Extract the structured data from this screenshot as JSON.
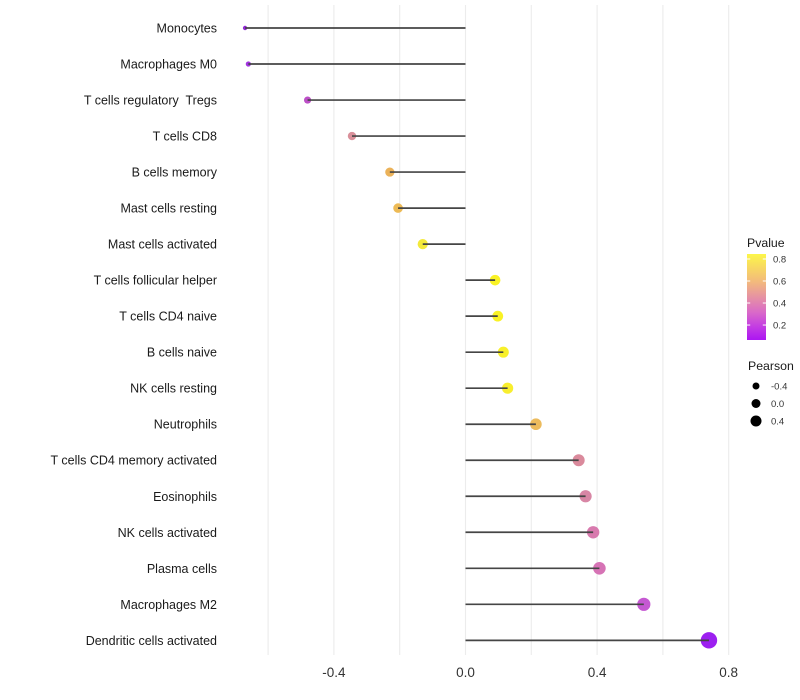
{
  "chart_data": {
    "type": "scatter",
    "variant": "lollipop",
    "orientation": "horizontal",
    "title": "",
    "xlabel": "",
    "ylabel": "",
    "xlim": [
      -0.74,
      1.0
    ],
    "grid": true,
    "gridline_values": [
      -0.6,
      -0.4,
      -0.2,
      0.0,
      0.2,
      0.4,
      0.6,
      0.8
    ],
    "x_ticks": [
      {
        "value": -0.4,
        "label": "-0.4"
      },
      {
        "value": 0.0,
        "label": "0.0"
      },
      {
        "value": 0.4,
        "label": "0.4"
      },
      {
        "value": 0.8,
        "label": "0.8"
      }
    ],
    "points": [
      {
        "category": "Monocytes",
        "pearson": -0.67,
        "pvalue_color": "#9229D5",
        "radius": 2.2
      },
      {
        "category": "Macrophages M0",
        "pearson": -0.66,
        "pvalue_color": "#A134E0",
        "radius": 2.6
      },
      {
        "category": "T cells regulatory  Tregs",
        "pearson": -0.48,
        "pvalue_color": "#BC4FC7",
        "radius": 3.6
      },
      {
        "category": "T cells CD8",
        "pearson": -0.345,
        "pvalue_color": "#D9909A",
        "radius": 4.2
      },
      {
        "category": "B cells memory",
        "pearson": -0.23,
        "pvalue_color": "#EBB259",
        "radius": 4.6
      },
      {
        "category": "Mast cells resting",
        "pearson": -0.205,
        "pvalue_color": "#EDBA55",
        "radius": 4.8
      },
      {
        "category": "Mast cells activated",
        "pearson": -0.13,
        "pvalue_color": "#F3E93B",
        "radius": 5.1
      },
      {
        "category": "T cells follicular helper",
        "pearson": 0.09,
        "pvalue_color": "#F9F225",
        "radius": 5.3
      },
      {
        "category": "T cells CD4 naive",
        "pearson": 0.098,
        "pvalue_color": "#F9F225",
        "radius": 5.4
      },
      {
        "category": "B cells naive",
        "pearson": 0.115,
        "pvalue_color": "#F8F02A",
        "radius": 5.5
      },
      {
        "category": "NK cells resting",
        "pearson": 0.128,
        "pvalue_color": "#F8EE2E",
        "radius": 5.6
      },
      {
        "category": "Neutrophils",
        "pearson": 0.214,
        "pvalue_color": "#ECBB5D",
        "radius": 5.8
      },
      {
        "category": "T cells CD4 memory activated",
        "pearson": 0.344,
        "pvalue_color": "#DA8A9C",
        "radius": 6.0
      },
      {
        "category": "Eosinophils",
        "pearson": 0.365,
        "pvalue_color": "#D886A5",
        "radius": 6.1
      },
      {
        "category": "NK cells activated",
        "pearson": 0.388,
        "pvalue_color": "#D87AAE",
        "radius": 6.2
      },
      {
        "category": "Plasma cells",
        "pearson": 0.407,
        "pvalue_color": "#D673B5",
        "radius": 6.3
      },
      {
        "category": "Macrophages M2",
        "pearson": 0.542,
        "pvalue_color": "#C558D2",
        "radius": 6.6
      },
      {
        "category": "Dendritic cells activated",
        "pearson": 0.74,
        "pvalue_color": "#9C1FF0",
        "radius": 8.2
      }
    ],
    "legend_pvalue": {
      "title": "Pvalue",
      "ticks": [
        {
          "label": "0.8",
          "t": 0.058
        },
        {
          "label": "0.6",
          "t": 0.314
        },
        {
          "label": "0.4",
          "t": 0.57
        },
        {
          "label": "0.2",
          "t": 0.826
        }
      ],
      "gradient_stops": [
        {
          "offset": 0.0,
          "color": "#FCF649"
        },
        {
          "offset": 0.18,
          "color": "#F7D465"
        },
        {
          "offset": 0.33,
          "color": "#F2B87E"
        },
        {
          "offset": 0.5,
          "color": "#E692A3"
        },
        {
          "offset": 0.68,
          "color": "#D969C9"
        },
        {
          "offset": 0.84,
          "color": "#C43EE2"
        },
        {
          "offset": 1.0,
          "color": "#AC16F2"
        }
      ]
    },
    "legend_pearson": {
      "title": "Pearson",
      "dot_color": "#000000",
      "items": [
        {
          "label": "-0.4",
          "radius": 3.5
        },
        {
          "label": "0.0",
          "radius": 4.5
        },
        {
          "label": "0.4",
          "radius": 5.5
        }
      ]
    },
    "styles": {
      "background": "#FFFFFF",
      "gridline_color": "#ECECEC",
      "stem_color": "#454545",
      "label_color": "#1A1A1A",
      "tick_label_color": "#333333",
      "legend_title_color": "#1A1A1A",
      "legend_label_color": "#333333"
    }
  }
}
